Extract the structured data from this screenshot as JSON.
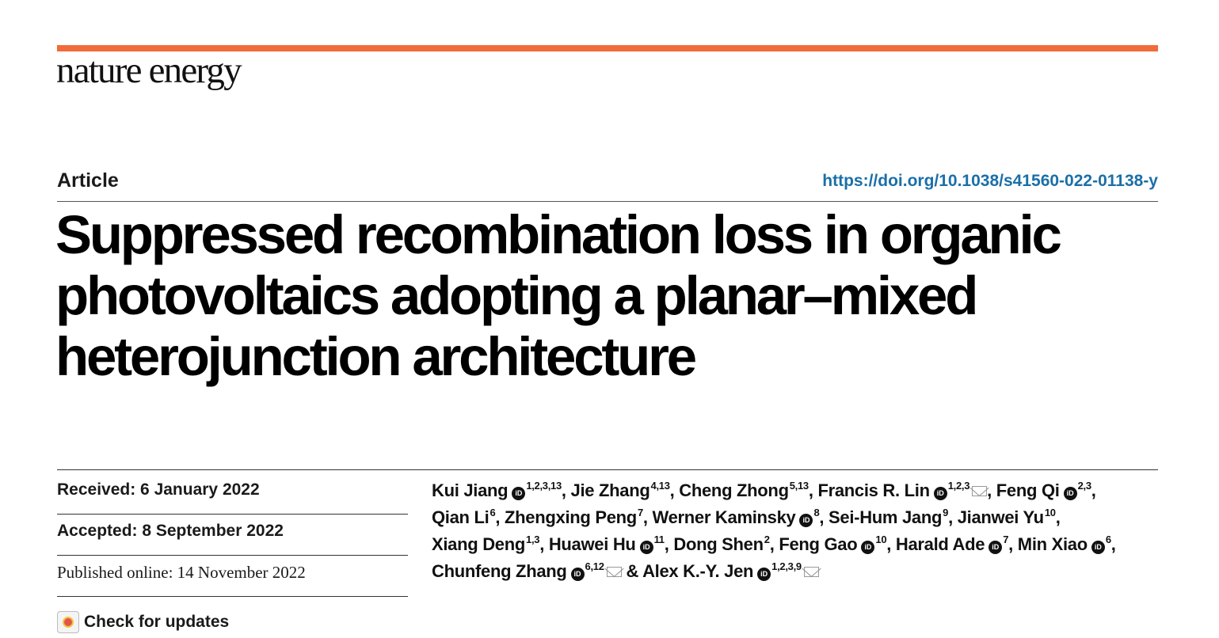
{
  "journal": "nature energy",
  "article_type": "Article",
  "doi": "https://doi.org/10.1038/s41560-022-01138-y",
  "title_lines": [
    "Suppressed recombination loss in organic",
    "photovoltaics adopting a planar–mixed",
    "heterojunction architecture"
  ],
  "dates": {
    "received": "Received: 6 January 2022",
    "accepted": "Accepted: 8 September 2022",
    "published": "Published online: 14 November 2022"
  },
  "check_updates": "Check for updates",
  "authors": [
    {
      "name": "Kui Jiang",
      "orcid": true,
      "aff": "1,2,3,13",
      "mail": false
    },
    {
      "name": "Jie Zhang",
      "orcid": false,
      "aff": "4,13",
      "mail": false
    },
    {
      "name": "Cheng Zhong",
      "orcid": false,
      "aff": "5,13",
      "mail": false
    },
    {
      "name": "Francis R. Lin",
      "orcid": true,
      "aff": "1,2,3",
      "mail": true
    },
    {
      "name": "Feng Qi",
      "orcid": true,
      "aff": "2,3",
      "mail": false
    },
    {
      "name": "Qian Li",
      "orcid": false,
      "aff": "6",
      "mail": false
    },
    {
      "name": "Zhengxing Peng",
      "orcid": false,
      "aff": "7",
      "mail": false
    },
    {
      "name": "Werner Kaminsky",
      "orcid": true,
      "aff": "8",
      "mail": false
    },
    {
      "name": "Sei-Hum Jang",
      "orcid": false,
      "aff": "9",
      "mail": false
    },
    {
      "name": "Jianwei Yu",
      "orcid": false,
      "aff": "10",
      "mail": false
    },
    {
      "name": "Xiang Deng",
      "orcid": false,
      "aff": "1,3",
      "mail": false
    },
    {
      "name": "Huawei Hu",
      "orcid": true,
      "aff": "11",
      "mail": false
    },
    {
      "name": "Dong Shen",
      "orcid": false,
      "aff": "2",
      "mail": false
    },
    {
      "name": "Feng Gao",
      "orcid": true,
      "aff": "10",
      "mail": false
    },
    {
      "name": "Harald Ade",
      "orcid": true,
      "aff": "7",
      "mail": false
    },
    {
      "name": "Min Xiao",
      "orcid": true,
      "aff": "6",
      "mail": false
    },
    {
      "name": "Chunfeng Zhang",
      "orcid": true,
      "aff": "6,12",
      "mail": true
    },
    {
      "name": "Alex K.-Y. Jen",
      "orcid": true,
      "aff": "1,2,3,9",
      "mail": true
    }
  ],
  "orcid_glyph": "iD",
  "colors": {
    "accent": "#f26b3a",
    "link": "#1b6fa8"
  }
}
